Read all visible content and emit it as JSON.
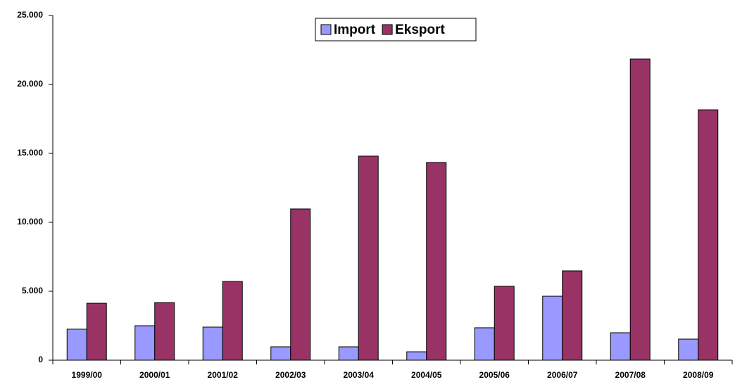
{
  "chart_data": {
    "type": "bar",
    "categories": [
      "1999/00",
      "2000/01",
      "2001/02",
      "2002/03",
      "2003/04",
      "2004/05",
      "2005/06",
      "2006/07",
      "2007/08",
      "2008/09"
    ],
    "series": [
      {
        "name": "Import",
        "color": "#9999ff",
        "values": [
          2250,
          2500,
          2400,
          970,
          970,
          610,
          2350,
          4640,
          1990,
          1530
        ]
      },
      {
        "name": "Eksport",
        "color": "#993366",
        "values": [
          4130,
          4180,
          5710,
          10970,
          14800,
          14340,
          5360,
          6480,
          21840,
          18160
        ]
      }
    ],
    "ylim": [
      0,
      25000
    ],
    "yticks": [
      0,
      {
        "value": 5000,
        "label": "5.000"
      },
      {
        "value": 10000,
        "label": "10.000"
      },
      {
        "value": 15000,
        "label": "15.000"
      },
      {
        "value": 20000,
        "label": "20.000"
      },
      {
        "value": 25000,
        "label": "25.000"
      }
    ],
    "grid": false,
    "legend": "top"
  }
}
